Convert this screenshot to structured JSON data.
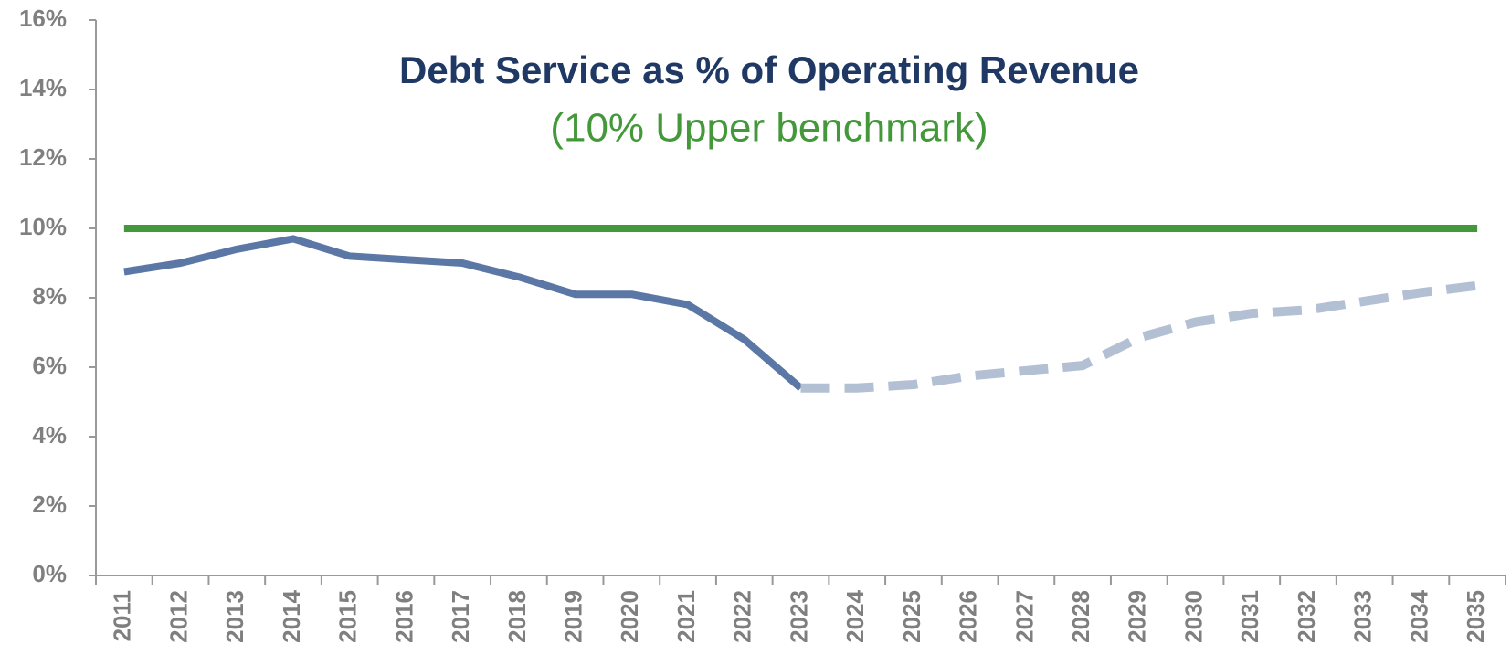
{
  "chart_data": {
    "type": "line",
    "title": "Debt Service as % of Operating Revenue",
    "subtitle": "(10% Upper benchmark)",
    "categories": [
      "2011",
      "2012",
      "2013",
      "2014",
      "2015",
      "2016",
      "2017",
      "2018",
      "2019",
      "2020",
      "2021",
      "2022",
      "2023",
      "2024",
      "2025",
      "2026",
      "2027",
      "2028",
      "2029",
      "2030",
      "2031",
      "2032",
      "2033",
      "2034",
      "2035"
    ],
    "series": [
      {
        "color": "#5b77a5",
        "dashed": false,
        "values": [
          8.75,
          9.0,
          9.4,
          9.7,
          9.2,
          9.1,
          9.0,
          8.6,
          8.1,
          8.1,
          7.8,
          6.8,
          5.4,
          null,
          null,
          null,
          null,
          null,
          null,
          null,
          null,
          null,
          null,
          null,
          null
        ]
      },
      {
        "color": "#b3c0d4",
        "dashed": true,
        "values": [
          null,
          null,
          null,
          null,
          null,
          null,
          null,
          null,
          null,
          null,
          null,
          null,
          5.4,
          5.4,
          5.5,
          5.75,
          5.9,
          6.05,
          6.85,
          7.3,
          7.55,
          7.65,
          7.9,
          8.15,
          8.35
        ]
      },
      {
        "color": "#43983a",
        "dashed": false,
        "values": [
          10,
          10,
          10,
          10,
          10,
          10,
          10,
          10,
          10,
          10,
          10,
          10,
          10,
          10,
          10,
          10,
          10,
          10,
          10,
          10,
          10,
          10,
          10,
          10,
          10
        ]
      }
    ],
    "ylim": [
      0,
      16
    ],
    "yticks": [
      {
        "value": 0,
        "label": "0%"
      },
      {
        "value": 2,
        "label": "2%"
      },
      {
        "value": 4,
        "label": "4%"
      },
      {
        "value": 6,
        "label": "6%"
      },
      {
        "value": 8,
        "label": "8%"
      },
      {
        "value": 10,
        "label": "10%"
      },
      {
        "value": 12,
        "label": "12%"
      },
      {
        "value": 14,
        "label": "14%"
      },
      {
        "value": 16,
        "label": "16%"
      }
    ],
    "grid": false
  }
}
